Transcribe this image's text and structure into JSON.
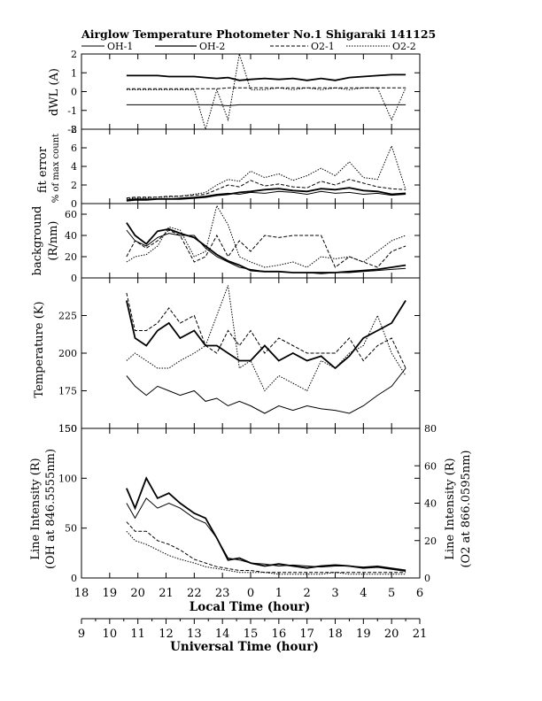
{
  "header": {
    "title": "Airglow Temperature Photometer No.1   Shigaraki   141125"
  },
  "legend": [
    {
      "label": "OH-1",
      "style": "solid-thin"
    },
    {
      "label": "OH-2",
      "style": "solid-thick"
    },
    {
      "label": "O2-1",
      "style": "dashed"
    },
    {
      "label": "O2-2",
      "style": "dotted"
    }
  ],
  "x_axes": {
    "local_label": "Local Time (hour)",
    "local_ticks": [
      "18",
      "19",
      "20",
      "21",
      "22",
      "23",
      "0",
      "1",
      "2",
      "3",
      "4",
      "5",
      "6"
    ],
    "ut_label": "Universal Time (hour)",
    "ut_ticks": [
      "9",
      "10",
      "11",
      "12",
      "13",
      "14",
      "15",
      "16",
      "17",
      "18",
      "19",
      "20",
      "21"
    ]
  },
  "chart_data": [
    {
      "type": "line",
      "panel": "dwl",
      "ylabel": "dWL (A)",
      "ylim": [
        -2,
        2
      ],
      "yticks": [
        "2",
        "1",
        "0",
        "-1",
        "-2"
      ],
      "x_range_local_hour": [
        18,
        30
      ],
      "x": [
        19.6,
        19.9,
        20.3,
        20.7,
        21.1,
        21.5,
        22.0,
        22.4,
        22.8,
        23.2,
        23.6,
        24.0,
        24.5,
        25.0,
        25.5,
        26.0,
        26.5,
        27.0,
        27.5,
        28.0,
        28.5,
        29.0,
        29.5
      ],
      "series": [
        {
          "name": "OH-1",
          "values": [
            -0.7,
            -0.7,
            -0.7,
            -0.7,
            -0.7,
            -0.7,
            -0.7,
            -0.7,
            -0.7,
            -0.75,
            -0.7,
            -0.7,
            -0.7,
            -0.7,
            -0.7,
            -0.7,
            -0.7,
            -0.7,
            -0.7,
            -0.7,
            -0.7,
            -0.7,
            -0.7
          ]
        },
        {
          "name": "OH-2",
          "values": [
            0.85,
            0.85,
            0.85,
            0.85,
            0.8,
            0.8,
            0.8,
            0.75,
            0.7,
            0.75,
            0.6,
            0.65,
            0.7,
            0.65,
            0.7,
            0.6,
            0.7,
            0.6,
            0.75,
            0.8,
            0.85,
            0.9,
            0.9
          ]
        },
        {
          "name": "O2-1",
          "values": [
            0.15,
            0.15,
            0.15,
            0.15,
            0.15,
            0.15,
            0.15,
            0.15,
            0.15,
            0.2,
            0.2,
            0.2,
            0.2,
            0.2,
            0.2,
            0.2,
            0.2,
            0.2,
            0.2,
            0.2,
            0.2,
            0.2,
            0.2
          ]
        },
        {
          "name": "O2-2",
          "values": [
            0.1,
            0.1,
            0.1,
            0.1,
            0.1,
            0.1,
            0.1,
            -2.0,
            0.1,
            -1.5,
            2.0,
            0.1,
            0.1,
            0.2,
            0.1,
            0.2,
            0.1,
            0.2,
            0.1,
            0.2,
            0.2,
            -1.5,
            0.2
          ]
        }
      ]
    },
    {
      "type": "line",
      "panel": "fit-error",
      "ylabel": "fit error",
      "ylabel2": "% of max count",
      "ylim": [
        0,
        8
      ],
      "yticks": [
        "8",
        "6",
        "4",
        "2",
        "0"
      ],
      "x_range_local_hour": [
        18,
        30
      ],
      "x": [
        19.6,
        19.9,
        20.3,
        20.7,
        21.1,
        21.5,
        22.0,
        22.4,
        22.8,
        23.2,
        23.6,
        24.0,
        24.5,
        25.0,
        25.5,
        26.0,
        26.5,
        27.0,
        27.5,
        28.0,
        28.5,
        29.0,
        29.5
      ],
      "series": [
        {
          "name": "OH-1",
          "values": [
            0.4,
            0.5,
            0.5,
            0.5,
            0.5,
            0.6,
            0.7,
            0.8,
            1.0,
            1.1,
            1.0,
            1.2,
            1.1,
            1.3,
            1.2,
            1.0,
            1.3,
            1.1,
            1.2,
            1.0,
            1.1,
            0.9,
            1.0
          ]
        },
        {
          "name": "OH-2",
          "values": [
            0.3,
            0.4,
            0.4,
            0.5,
            0.5,
            0.5,
            0.6,
            0.7,
            0.9,
            1.0,
            1.2,
            1.3,
            1.5,
            1.6,
            1.4,
            1.3,
            1.6,
            1.5,
            1.7,
            1.4,
            1.3,
            1.0,
            1.1
          ]
        },
        {
          "name": "O2-1",
          "values": [
            0.6,
            0.7,
            0.7,
            0.7,
            0.8,
            0.8,
            0.9,
            1.0,
            1.5,
            2.0,
            1.8,
            2.5,
            1.9,
            2.1,
            1.8,
            1.7,
            2.4,
            2.0,
            2.6,
            2.2,
            1.8,
            1.6,
            1.5
          ]
        },
        {
          "name": "O2-2",
          "values": [
            0.5,
            0.6,
            0.6,
            0.7,
            0.7,
            0.8,
            1.0,
            1.2,
            2.0,
            2.6,
            2.4,
            3.5,
            2.8,
            3.2,
            2.5,
            3.0,
            3.8,
            3.0,
            4.5,
            2.8,
            2.6,
            6.2,
            1.5
          ]
        }
      ]
    },
    {
      "type": "line",
      "panel": "background",
      "ylabel": "background",
      "ylabel2": "(R/nm)",
      "ylim": [
        0,
        70
      ],
      "yticks": [
        "60",
        "40",
        "20",
        "0"
      ],
      "x_range_local_hour": [
        18,
        30
      ],
      "x": [
        19.6,
        19.9,
        20.3,
        20.7,
        21.1,
        21.5,
        22.0,
        22.4,
        22.8,
        23.2,
        23.6,
        24.0,
        24.5,
        25.0,
        25.5,
        26.0,
        26.5,
        27.0,
        27.5,
        28.0,
        28.5,
        29.0,
        29.5
      ],
      "series": [
        {
          "name": "OH-1",
          "values": [
            45,
            35,
            30,
            38,
            42,
            40,
            40,
            28,
            20,
            15,
            10,
            8,
            6,
            6,
            5,
            5,
            4,
            5,
            5,
            6,
            7,
            8,
            9
          ]
        },
        {
          "name": "OH-2",
          "values": [
            52,
            40,
            32,
            44,
            46,
            42,
            38,
            30,
            22,
            16,
            12,
            7,
            6,
            6,
            5,
            5,
            5,
            5,
            6,
            7,
            8,
            10,
            12
          ]
        },
        {
          "name": "O2-1",
          "values": [
            20,
            35,
            28,
            35,
            45,
            40,
            15,
            20,
            40,
            20,
            35,
            25,
            40,
            38,
            40,
            40,
            40,
            10,
            20,
            15,
            10,
            25,
            30
          ]
        },
        {
          "name": "O2-2",
          "values": [
            15,
            20,
            22,
            30,
            48,
            45,
            20,
            25,
            68,
            50,
            20,
            15,
            10,
            12,
            15,
            10,
            20,
            18,
            20,
            15,
            25,
            35,
            40
          ]
        }
      ]
    },
    {
      "type": "line",
      "panel": "temperature",
      "ylabel": "Temperature (K)",
      "ylim": [
        150,
        250
      ],
      "yticks": [
        "225",
        "200",
        "175",
        "150"
      ],
      "x_range_local_hour": [
        18,
        30
      ],
      "x": [
        19.6,
        19.9,
        20.3,
        20.7,
        21.1,
        21.5,
        22.0,
        22.4,
        22.8,
        23.2,
        23.6,
        24.0,
        24.5,
        25.0,
        25.5,
        26.0,
        26.5,
        27.0,
        27.5,
        28.0,
        28.5,
        29.0,
        29.5
      ],
      "series": [
        {
          "name": "OH-1",
          "values": [
            185,
            178,
            172,
            178,
            175,
            172,
            175,
            168,
            170,
            165,
            168,
            165,
            160,
            165,
            162,
            165,
            163,
            162,
            160,
            165,
            172,
            178,
            190
          ]
        },
        {
          "name": "OH-2",
          "values": [
            235,
            210,
            205,
            215,
            220,
            210,
            215,
            205,
            205,
            200,
            195,
            195,
            205,
            195,
            200,
            195,
            198,
            190,
            198,
            210,
            215,
            220,
            235
          ]
        },
        {
          "name": "O2-1",
          "values": [
            240,
            215,
            215,
            220,
            230,
            220,
            225,
            205,
            200,
            215,
            205,
            215,
            200,
            210,
            205,
            200,
            200,
            200,
            210,
            195,
            205,
            210,
            190
          ]
        },
        {
          "name": "O2-2",
          "values": [
            195,
            200,
            195,
            190,
            190,
            195,
            200,
            205,
            225,
            245,
            190,
            195,
            175,
            185,
            180,
            175,
            195,
            190,
            200,
            205,
            225,
            200,
            185
          ]
        }
      ]
    },
    {
      "type": "line",
      "panel": "line-intensity",
      "ylabel": "Line Intensity (R)",
      "ylabel2": "(OH at 846.5555nm)",
      "ylabel_right": "Line Intensity (R)",
      "ylabel_right2": "(O2 at 866.0595nm)",
      "ylim": [
        0,
        150
      ],
      "ylim_right": [
        0,
        80
      ],
      "yticks": [
        "150",
        "100",
        "50",
        "0"
      ],
      "yticks_right": [
        "80",
        "60",
        "40",
        "20",
        "0"
      ],
      "x_range_local_hour": [
        18,
        30
      ],
      "x": [
        19.6,
        19.9,
        20.3,
        20.7,
        21.1,
        21.5,
        22.0,
        22.4,
        22.8,
        23.2,
        23.6,
        24.0,
        24.5,
        25.0,
        25.5,
        26.0,
        26.5,
        27.0,
        27.5,
        28.0,
        28.5,
        29.0,
        29.5
      ],
      "series": [
        {
          "name": "OH-1",
          "values": [
            75,
            60,
            80,
            70,
            75,
            70,
            60,
            55,
            40,
            20,
            18,
            15,
            14,
            12,
            13,
            12,
            11,
            12,
            12,
            11,
            12,
            10,
            8
          ]
        },
        {
          "name": "OH-2",
          "values": [
            90,
            70,
            100,
            80,
            85,
            75,
            65,
            60,
            40,
            18,
            20,
            15,
            12,
            14,
            12,
            10,
            12,
            13,
            12,
            10,
            11,
            9,
            7
          ]
        },
        {
          "name": "O2-1",
          "values": [
            30,
            25,
            25,
            20,
            18,
            15,
            10,
            8,
            6,
            5,
            4,
            4,
            3,
            3,
            3,
            3,
            3,
            3,
            3,
            3,
            3,
            3,
            3
          ]
        },
        {
          "name": "O2-2",
          "values": [
            25,
            20,
            18,
            15,
            12,
            10,
            8,
            6,
            5,
            4,
            3,
            3,
            3,
            2,
            2,
            2,
            2,
            3,
            2,
            2,
            2,
            2,
            2
          ]
        }
      ]
    }
  ]
}
